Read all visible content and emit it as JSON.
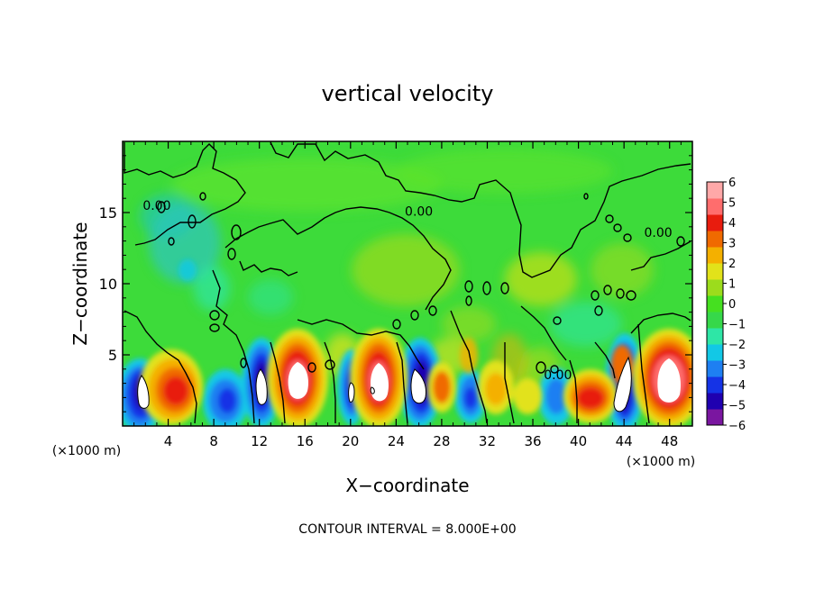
{
  "chart_data": {
    "type": "heatmap",
    "title": "vertical velocity",
    "xlabel": "X−coordinate",
    "ylabel": "Z−coordinate",
    "x_unit_label": "(×1000 m)",
    "y_unit_label": "(×1000 m)",
    "xlim": [
      0,
      50
    ],
    "ylim": [
      0,
      20
    ],
    "x_ticks": [
      {
        "value": 4,
        "label": "4"
      },
      {
        "value": 8,
        "label": "8"
      },
      {
        "value": 12,
        "label": "12"
      },
      {
        "value": 16,
        "label": "16"
      },
      {
        "value": 20,
        "label": "20"
      },
      {
        "value": 24,
        "label": "24"
      },
      {
        "value": 28,
        "label": "28"
      },
      {
        "value": 32,
        "label": "32"
      },
      {
        "value": 36,
        "label": "36"
      },
      {
        "value": 40,
        "label": "40"
      },
      {
        "value": 44,
        "label": "44"
      },
      {
        "value": 48,
        "label": "48"
      }
    ],
    "y_ticks": [
      {
        "value": 5,
        "label": "5"
      },
      {
        "value": 10,
        "label": "10"
      },
      {
        "value": 15,
        "label": "15"
      }
    ],
    "contour_labels": [
      {
        "x": 3.0,
        "z": 15.5,
        "text": "0.00"
      },
      {
        "x": 26.0,
        "z": 15.1,
        "text": "0.00"
      },
      {
        "x": 47.0,
        "z": 13.6,
        "text": "0.00"
      },
      {
        "x": 38.2,
        "z": 3.6,
        "text": "0.00"
      }
    ],
    "contour_interval_text": "CONTOUR INTERVAL = 8.000E+00",
    "colorbar": {
      "ticks": [
        "6",
        "5",
        "4",
        "3",
        "2",
        "1",
        "0",
        "−1",
        "−2",
        "−3",
        "−4",
        "−5",
        "−6"
      ],
      "range": [
        -6,
        6
      ],
      "colors": [
        "#7a16a0",
        "#1f00b0",
        "#1533e6",
        "#1e7ff2",
        "#12c8e6",
        "#2ee6a6",
        "#36d84a",
        "#45e020",
        "#9cdc1c",
        "#e2e21a",
        "#f4b000",
        "#f06a00",
        "#e81c0e",
        "#ff6d6d",
        "#ffa8a8"
      ]
    },
    "features": [
      {
        "type": "downdraft",
        "x": 1.8,
        "z": 2.2,
        "w": -6
      },
      {
        "type": "updraft",
        "x": 5.5,
        "z": 3.0,
        "w": 5
      },
      {
        "type": "downdraft",
        "x": 8.5,
        "z": 2.3,
        "w": -4
      },
      {
        "type": "downdraft",
        "x": 12.0,
        "z": 3.0,
        "w": -6
      },
      {
        "type": "updraft",
        "x": 15.5,
        "z": 3.5,
        "w": 6
      },
      {
        "type": "downdraft",
        "x": 19.5,
        "z": 2.5,
        "w": -6
      },
      {
        "type": "updraft",
        "x": 22.0,
        "z": 3.5,
        "w": 6
      },
      {
        "type": "downdraft",
        "x": 25.5,
        "z": 3.0,
        "w": -6
      },
      {
        "type": "updraft",
        "x": 28.0,
        "z": 2.5,
        "w": 4
      },
      {
        "type": "downdraft",
        "x": 30.0,
        "z": 2.0,
        "w": -4
      },
      {
        "type": "updraft",
        "x": 34.0,
        "z": 2.0,
        "w": 3
      },
      {
        "type": "downdraft",
        "x": 38.0,
        "z": 2.0,
        "w": -3
      },
      {
        "type": "updraft",
        "x": 40.5,
        "z": 2.0,
        "w": 5
      },
      {
        "type": "downdraft",
        "x": 44.0,
        "z": 2.5,
        "w": -6
      },
      {
        "type": "updraft",
        "x": 47.5,
        "z": 3.2,
        "w": 6
      }
    ]
  }
}
